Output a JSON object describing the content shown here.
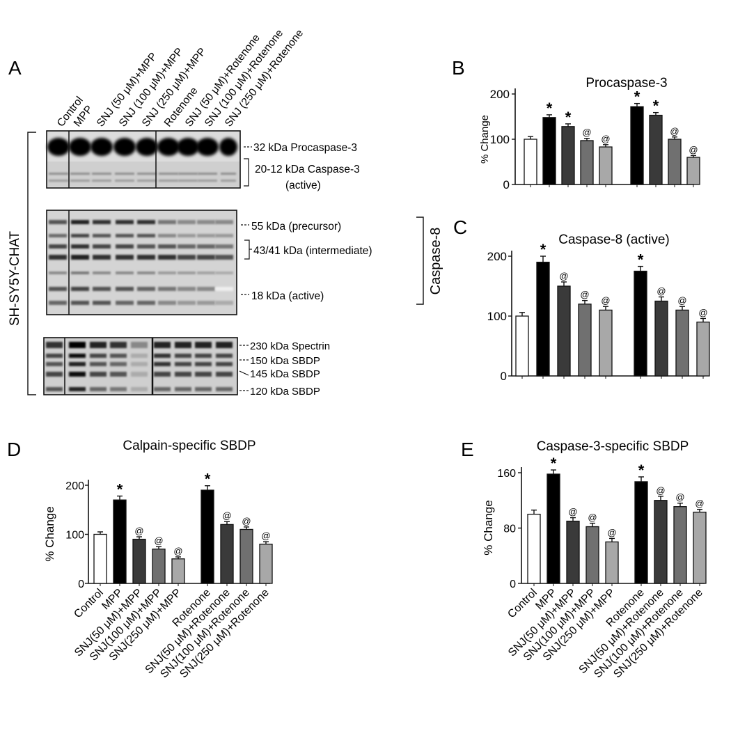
{
  "panels": {
    "a": {
      "letter": "A",
      "cell_line": "SH-SY5Y-CHAT",
      "lanes": [
        "Control",
        "MPP",
        "SNJ (50 μM)+MPP",
        "SNJ (100 μM)+MPP",
        "SNJ (250 μM)+MPP",
        "Rotenone",
        "SNJ (50 μM)+Rotenone",
        "SNJ (100 μM)+Rotenone",
        "SNJ (250 μM)+Rotenone"
      ],
      "blot1": {
        "band_labels": [
          "32 kDa Procaspase-3",
          "20-12 kDa Caspase-3",
          "(active)"
        ]
      },
      "blot2": {
        "band_labels": [
          "55 kDa (precursor)",
          "43/41 kDa (intermediate)",
          "18 kDa (active)"
        ],
        "group_label": "Caspase-8"
      },
      "blot3": {
        "band_labels": [
          "230 kDa Spectrin",
          "150 kDa SBDP",
          "145 kDa SBDP",
          "120 kDa SBDP"
        ]
      }
    },
    "b": {
      "letter": "B"
    },
    "c": {
      "letter": "C"
    },
    "d": {
      "letter": "D"
    },
    "e": {
      "letter": "E"
    }
  },
  "bar_colors": [
    "#ffffff",
    "#000000",
    "#3a3a3a",
    "#707070",
    "#a8a8a8"
  ],
  "chart_data": [
    {
      "panel": "B",
      "type": "bar",
      "title": "Procaspase-3",
      "ylabel": "% Change",
      "categories": [
        "Control",
        "MPP",
        "SNJ (50 μM)+MPP",
        "SNJ (100 μM)+MPP",
        "SNJ (250 μM)+MPP",
        "Rotenone",
        "SNJ (50 μM)+Rotenone",
        "SNJ (100 μM)+Rotenone",
        "SNJ (250 μM)+Rotenone"
      ],
      "values": [
        100,
        148,
        128,
        97,
        83,
        172,
        153,
        100,
        60
      ],
      "errors": [
        6,
        6,
        6,
        5,
        5,
        7,
        6,
        5,
        4
      ],
      "markers": [
        "",
        "*",
        "*",
        "@",
        "@",
        "*",
        "*",
        "@",
        "@"
      ],
      "yticks": [
        0,
        100,
        200
      ],
      "ylim": [
        0,
        200
      ]
    },
    {
      "panel": "C",
      "type": "bar",
      "title": "Caspase-8 (active)",
      "ylabel": "",
      "categories": [
        "Control",
        "MPP",
        "SNJ (50 μM)+MPP",
        "SNJ (100 μM)+MPP",
        "SNJ (250 μM)+MPP",
        "Rotenone",
        "SNJ (50 μM)+Rotenone",
        "SNJ (100 μM)+Rotenone",
        "SNJ (250 μM)+Rotenone"
      ],
      "values": [
        100,
        190,
        150,
        120,
        110,
        175,
        125,
        110,
        90
      ],
      "errors": [
        6,
        10,
        7,
        6,
        6,
        8,
        7,
        6,
        6
      ],
      "markers": [
        "",
        "*",
        "@",
        "@",
        "@",
        "*",
        "@",
        "@",
        "@"
      ],
      "yticks": [
        0,
        100,
        200
      ],
      "ylim": [
        0,
        200
      ]
    },
    {
      "panel": "D",
      "type": "bar",
      "title": "Calpain-specific SBDP",
      "ylabel": "% Change",
      "categories": [
        "Control",
        "MPP",
        "SNJ(50 μM)+MPP",
        "SNJ(100 μM)+MPP",
        "SNJ(250 μM)+MPP",
        "Rotenone",
        "SNJ(50 μM)+Rotenone",
        "SNJ(100 μM)+Rotenone",
        "SNJ(250 μM)+Rotenone"
      ],
      "values": [
        100,
        170,
        90,
        70,
        50,
        190,
        120,
        110,
        80
      ],
      "errors": [
        5,
        8,
        5,
        5,
        4,
        9,
        6,
        5,
        5
      ],
      "markers": [
        "",
        "*",
        "@",
        "@",
        "@",
        "*",
        "@",
        "@",
        "@"
      ],
      "yticks": [
        0,
        100,
        200
      ],
      "ylim": [
        0,
        200
      ]
    },
    {
      "panel": "E",
      "type": "bar",
      "title": "Caspase-3-specific SBDP",
      "ylabel": "% Change",
      "categories": [
        "Control",
        "MPP",
        "SNJ(50 μM)+MPP",
        "SNJ(100 μM)+MPP",
        "SNJ(250 μM)+MPP",
        "Rotenone",
        "SNJ(50 μM)+Rotenone",
        "SNJ(100 μM)+Rotenone",
        "SNJ(250 μM)+Rotenone"
      ],
      "values": [
        100,
        158,
        90,
        82,
        60,
        147,
        120,
        111,
        103
      ],
      "errors": [
        6,
        6,
        5,
        5,
        5,
        7,
        6,
        5,
        4
      ],
      "markers": [
        "",
        "*",
        "@",
        "@",
        "@",
        "*",
        "@",
        "@",
        "@"
      ],
      "yticks": [
        0,
        80,
        160
      ],
      "ylim": [
        0,
        160
      ]
    }
  ]
}
